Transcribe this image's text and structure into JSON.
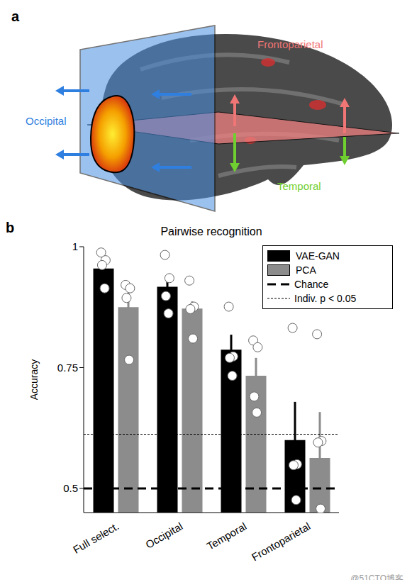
{
  "diagram": {
    "panel_label": "a",
    "regions": [
      {
        "text": "Occipital",
        "color": "#2f7fe0"
      },
      {
        "text": "Frontoparietal",
        "color": "#f07575"
      },
      {
        "text": "Temporal",
        "color": "#6fcf30"
      }
    ]
  },
  "chart_panel_label": "b",
  "watermark": "@51CTO博客",
  "chart_data": {
    "type": "bar",
    "title": "Pairwise recognition",
    "y_label": "Accuracy",
    "categories": [
      "Full select.",
      "Occipital",
      "Temporal",
      "Frontoparietal"
    ],
    "series": [
      {
        "name": "VAE-GAN",
        "color": "#000000",
        "values": [
          0.955,
          0.917,
          0.787,
          0.6
        ],
        "errors": [
          0.01,
          0.017,
          0.031,
          0.079
        ],
        "points": [
          [
            0.988,
            0.972,
            0.962,
            0.914
          ],
          [
            0.983,
            0.935,
            0.898,
            0.862
          ],
          [
            0.876,
            0.773,
            0.77,
            0.733
          ],
          [
            0.832,
            0.55,
            0.548,
            0.476
          ]
        ]
      },
      {
        "name": "PCA",
        "color": "#8c8c8c",
        "values": [
          0.875,
          0.872,
          0.733,
          0.563
        ],
        "errors": [
          0.03,
          0.015,
          0.037,
          0.095
        ],
        "points": [
          [
            0.921,
            0.914,
            0.894,
            0.766
          ],
          [
            0.93,
            0.876,
            0.871,
            0.81
          ],
          [
            0.806,
            0.792,
            0.69,
            0.657
          ],
          [
            0.819,
            0.598,
            0.595,
            0.458
          ]
        ]
      }
    ],
    "reference_lines": [
      {
        "name": "Chance",
        "value": 0.5,
        "line_style": "dashed"
      },
      {
        "name": "Indiv. p < 0.05",
        "value": 0.612,
        "line_style": "dotted"
      }
    ],
    "ylim": [
      0.45,
      1
    ],
    "yticks": [
      0.5,
      0.75,
      1
    ],
    "legend": "top-right",
    "grid": false
  }
}
